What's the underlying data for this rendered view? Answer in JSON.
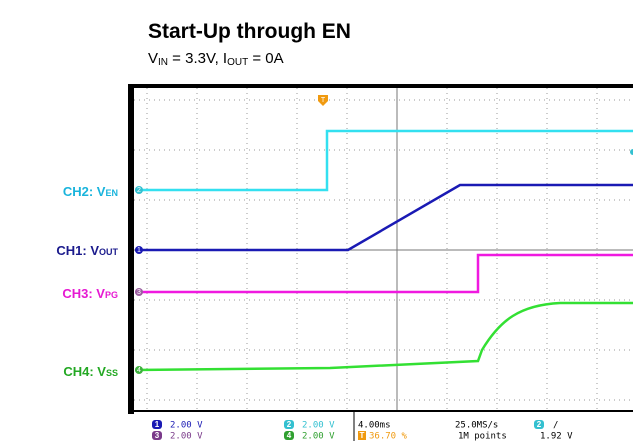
{
  "header": {
    "title": "Start-Up through EN",
    "subtitle": [
      "V",
      "IN",
      " = 3.3V, I",
      "OUT",
      " = 0A"
    ]
  },
  "channels": [
    {
      "label": "CH2: V",
      "sub": "EN"
    },
    {
      "label": "CH1: V",
      "sub": "OUT"
    },
    {
      "label": "CH3: V",
      "sub": "PG"
    },
    {
      "label": "CH4: V",
      "sub": "SS"
    }
  ],
  "scope": {
    "trigger_marker": "T",
    "markers": [
      "2",
      "1",
      "3",
      "4"
    ],
    "status": {
      "ch1": {
        "num": "1",
        "scale": "2.00 V"
      },
      "ch3": {
        "num": "3",
        "scale": "2.00 V"
      },
      "ch2": {
        "num": "2",
        "scale": "2.00 V"
      },
      "ch4": {
        "num": "4",
        "scale": "2.00 V"
      },
      "timebase": "4.00ms",
      "trigger_pos": {
        "icon": "T",
        "value": "36.70 %"
      },
      "sample_rate": "25.0MS/s",
      "record": "1M points",
      "trigger": {
        "num": "2",
        "slope": "/",
        "level": "1.92 V"
      }
    }
  }
}
